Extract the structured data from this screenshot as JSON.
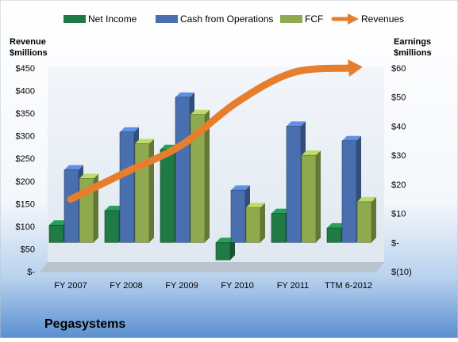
{
  "chart_data": {
    "type": "bar",
    "title": "Pegasystems",
    "categories": [
      "FY 2007",
      "FY 2008",
      "FY 2009",
      "FY 2010",
      "FY 2011",
      "TTM 6-2012"
    ],
    "left_axis": {
      "label_line1": "Revenue",
      "label_line2": "$millions",
      "ylim": [
        0,
        450
      ],
      "ticks": [
        0,
        50,
        100,
        150,
        200,
        250,
        300,
        350,
        400,
        450
      ],
      "tick_labels": [
        "$-",
        "$50",
        "$100",
        "$150",
        "$200",
        "$250",
        "$300",
        "$350",
        "$400",
        "$450"
      ]
    },
    "right_axis": {
      "label_line1": "Earnings",
      "label_line2": "$millions",
      "ylim": [
        -10,
        60
      ],
      "ticks": [
        -10,
        0,
        10,
        20,
        30,
        40,
        50,
        60
      ],
      "tick_labels": [
        "$(10)",
        "$-",
        "$10",
        "$20",
        "$30",
        "$40",
        "$50",
        "$60"
      ]
    },
    "series": [
      {
        "name": "Net Income",
        "kind": "bar",
        "axis": "right",
        "color": "#1f7a45",
        "values": [
          6,
          11,
          32,
          -6,
          10,
          5
        ]
      },
      {
        "name": "Cash from Operations",
        "kind": "bar",
        "axis": "right",
        "color": "#4a6faf",
        "values": [
          25,
          38,
          50,
          18,
          40,
          35
        ]
      },
      {
        "name": "FCF",
        "kind": "bar",
        "axis": "right",
        "color": "#8faa4e",
        "values": [
          22,
          34,
          44,
          12,
          30,
          14
        ]
      },
      {
        "name": "Revenues",
        "kind": "line",
        "axis": "left",
        "color": "#e67e2e",
        "values": [
          160,
          220,
          280,
          375,
          440,
          450
        ]
      }
    ],
    "legend_position": "top",
    "grid": false
  }
}
